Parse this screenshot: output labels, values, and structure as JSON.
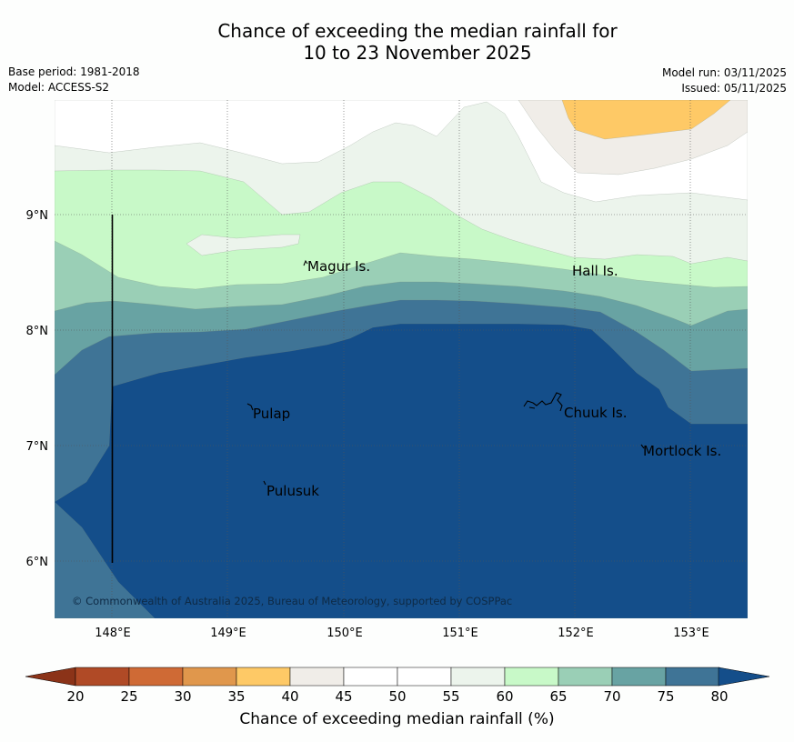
{
  "title": {
    "line1": "Chance of exceeding the median rainfall for",
    "line2": "10 to 23 November 2025"
  },
  "meta_left": {
    "base_period": "Base period: 1981-2018",
    "model": "Model: ACCESS-S2"
  },
  "meta_right": {
    "model_run": "Model run: 03/11/2025",
    "issued": "Issued: 05/11/2025"
  },
  "map": {
    "lon_labels": [
      "148°E",
      "149°E",
      "150°E",
      "151°E",
      "152°E",
      "153°E"
    ],
    "lat_labels": [
      "9°N",
      "8°N",
      "7°N",
      "6°N"
    ],
    "place_labels": [
      "Magur Is.",
      "Hall Is.",
      "Pulap",
      "Chuuk Is.",
      "Mortlock Is.",
      "Pulusuk"
    ],
    "copyright": "© Commonwealth of Australia 2025, Bureau of Meteorology, supported by COSPPac"
  },
  "colorbar": {
    "ticks": [
      "20",
      "25",
      "30",
      "35",
      "40",
      "45",
      "50",
      "55",
      "60",
      "65",
      "70",
      "75",
      "80"
    ],
    "label": "Chance of exceeding median rainfall (%)",
    "band_colors": [
      "#b04a26",
      "#cf6a35",
      "#e0974c",
      "#fec966",
      "#f0ede8",
      "#ffffff",
      "#ffffff",
      "#ecf4ec",
      "#c8f9c8",
      "#9acfb6",
      "#68a3a3",
      "#3f7496"
    ],
    "under_color": "#8b3318",
    "over_color": "#144e8a"
  }
}
